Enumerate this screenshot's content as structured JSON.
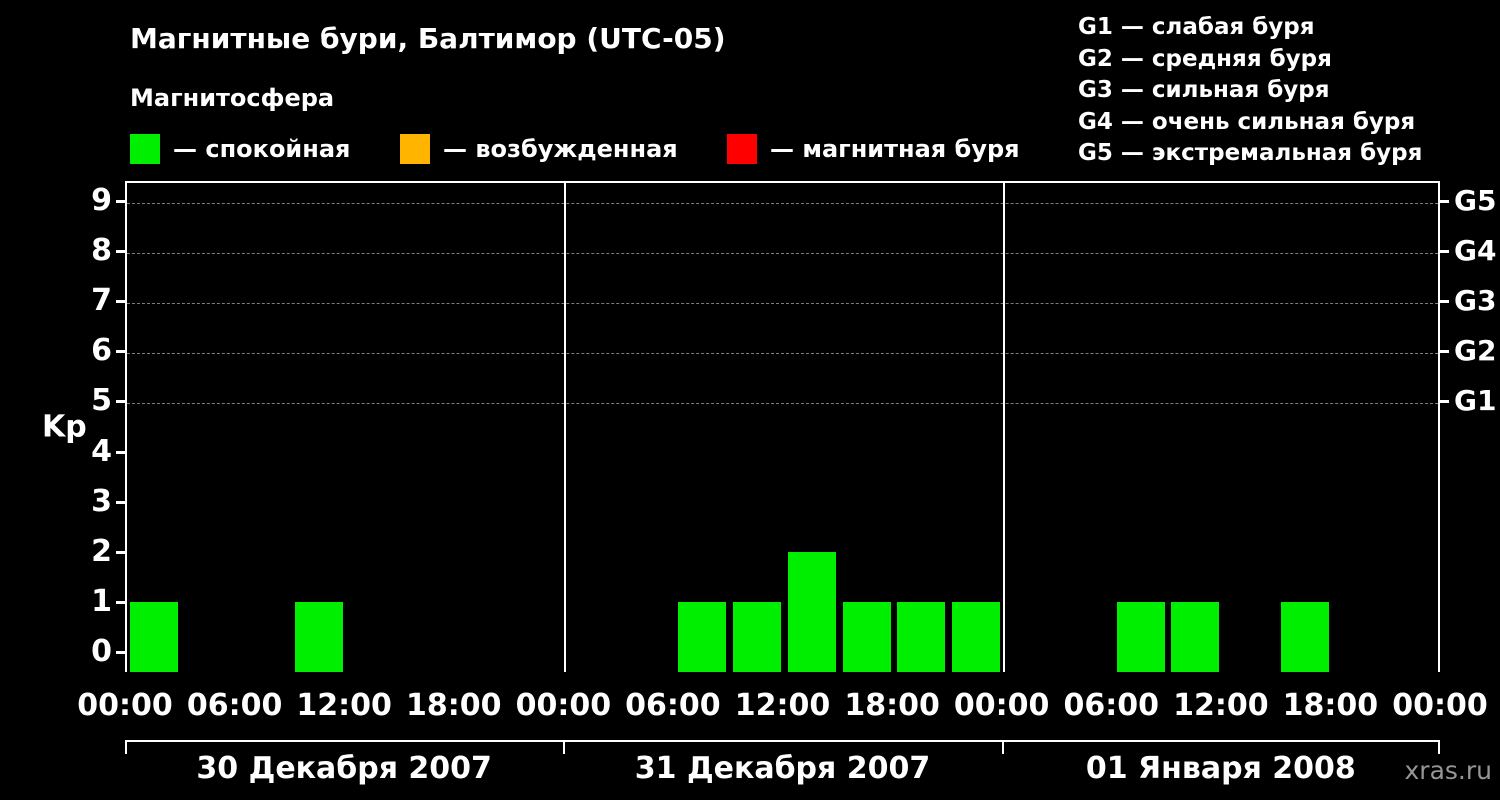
{
  "title": "Магнитные бури, Балтимор (UTC-05)",
  "subtitle": "Магнитосфера",
  "legend": [
    {
      "label": "— спокойная",
      "color": "#00ee00"
    },
    {
      "label": "— возбужденная",
      "color": "#ffb400"
    },
    {
      "label": "— магнитная буря",
      "color": "#ff0000"
    }
  ],
  "storm_scale": [
    "G1 — слабая буря",
    "G2 — средняя буря",
    "G3 — сильная буря",
    "G4 — очень сильная буря",
    "G5 — экстремальная буря"
  ],
  "watermark": "xras.ru",
  "chart_data": {
    "type": "bar",
    "title": "Магнитные бури, Балтимор (UTC-05)",
    "ylabel": "Kp",
    "ylim": [
      0,
      9
    ],
    "y_ticks": [
      0,
      1,
      2,
      3,
      4,
      5,
      6,
      7,
      8,
      9
    ],
    "grid": "dashed-horizontal",
    "grid_values": [
      5,
      6,
      7,
      8,
      9
    ],
    "right_axis": [
      {
        "value": 9,
        "label": "G5"
      },
      {
        "value": 8,
        "label": "G4"
      },
      {
        "value": 7,
        "label": "G3"
      },
      {
        "value": 6,
        "label": "G2"
      },
      {
        "value": 5,
        "label": "G1"
      }
    ],
    "x_time_ticks": [
      "00:00",
      "06:00",
      "12:00",
      "18:00"
    ],
    "x_final_tick": "00:00",
    "interval_hours": 3,
    "days": [
      {
        "date": "30 Декабря 2007",
        "kp": [
          1,
          0,
          0,
          1,
          0,
          0,
          0,
          0
        ]
      },
      {
        "date": "31 Декабря 2007",
        "kp": [
          0,
          0,
          1,
          1,
          2,
          1,
          1,
          1
        ]
      },
      {
        "date": "01 Января 2008",
        "kp": [
          0,
          0,
          1,
          1,
          0,
          1,
          0,
          0
        ]
      }
    ],
    "colors": {
      "quiet": "#00ee00",
      "unsettled": "#ffb400",
      "storm": "#ff0000"
    },
    "thresholds": {
      "quiet_max": 3,
      "unsettled_max": 4
    },
    "legend_position": "top"
  }
}
